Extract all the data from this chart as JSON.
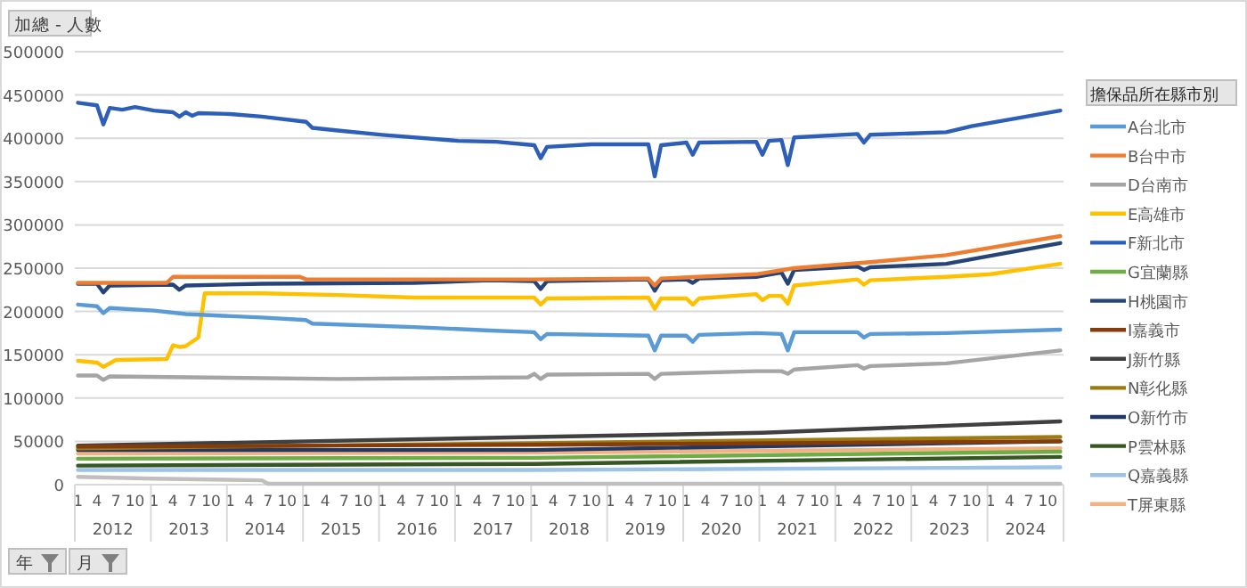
{
  "chart_data": {
    "type": "line",
    "ylabel": "加總 - 人數",
    "legend_title": "擔保品所在縣市別",
    "legend": "right",
    "grid": "y",
    "line_style": "solid",
    "xlim": [
      "2011-12-16",
      "2024-12-16"
    ],
    "ylim": [
      0,
      500000
    ],
    "yticks": [
      0,
      50000,
      100000,
      150000,
      200000,
      250000,
      300000,
      350000,
      400000,
      450000,
      500000
    ],
    "xticks": [
      {
        "value": "2012-01",
        "label": "1"
      },
      {
        "value": "2012-04",
        "label": "4"
      },
      {
        "value": "2012-07",
        "label": "7"
      },
      {
        "value": "2012-10",
        "label": "10"
      },
      {
        "value": "2013-01",
        "label": "1"
      },
      {
        "value": "2013-04",
        "label": "4"
      },
      {
        "value": "2013-07",
        "label": "7"
      },
      {
        "value": "2013-10",
        "label": "10"
      },
      {
        "value": "2014-01",
        "label": "1"
      },
      {
        "value": "2014-04",
        "label": "4"
      },
      {
        "value": "2014-07",
        "label": "7"
      },
      {
        "value": "2014-10",
        "label": "10"
      },
      {
        "value": "2015-01",
        "label": "1"
      },
      {
        "value": "2015-04",
        "label": "4"
      },
      {
        "value": "2015-07",
        "label": "7"
      },
      {
        "value": "2015-10",
        "label": "10"
      },
      {
        "value": "2016-01",
        "label": "1"
      },
      {
        "value": "2016-04",
        "label": "4"
      },
      {
        "value": "2016-07",
        "label": "7"
      },
      {
        "value": "2016-10",
        "label": "10"
      },
      {
        "value": "2017-01",
        "label": "1"
      },
      {
        "value": "2017-04",
        "label": "4"
      },
      {
        "value": "2017-07",
        "label": "7"
      },
      {
        "value": "2017-10",
        "label": "10"
      },
      {
        "value": "2018-01",
        "label": "1"
      },
      {
        "value": "2018-04",
        "label": "4"
      },
      {
        "value": "2018-07",
        "label": "7"
      },
      {
        "value": "2018-10",
        "label": "10"
      },
      {
        "value": "2019-01",
        "label": "1"
      },
      {
        "value": "2019-04",
        "label": "4"
      },
      {
        "value": "2019-07",
        "label": "7"
      },
      {
        "value": "2019-10",
        "label": "10"
      },
      {
        "value": "2020-01",
        "label": "1"
      },
      {
        "value": "2020-04",
        "label": "4"
      },
      {
        "value": "2020-07",
        "label": "7"
      },
      {
        "value": "2020-10",
        "label": "10"
      },
      {
        "value": "2021-01",
        "label": "1"
      },
      {
        "value": "2021-04",
        "label": "4"
      },
      {
        "value": "2021-07",
        "label": "7"
      },
      {
        "value": "2021-10",
        "label": "10"
      },
      {
        "value": "2022-01",
        "label": "1"
      },
      {
        "value": "2022-04",
        "label": "4"
      },
      {
        "value": "2022-07",
        "label": "7"
      },
      {
        "value": "2022-10",
        "label": "10"
      },
      {
        "value": "2023-01",
        "label": "1"
      },
      {
        "value": "2023-04",
        "label": "4"
      },
      {
        "value": "2023-07",
        "label": "7"
      },
      {
        "value": "2023-10",
        "label": "10"
      },
      {
        "value": "2024-01",
        "label": "1"
      },
      {
        "value": "2024-04",
        "label": "4"
      },
      {
        "value": "2024-07",
        "label": "7"
      },
      {
        "value": "2024-10",
        "label": "10"
      }
    ],
    "annotations": [
      "2012",
      "2013",
      "2014",
      "2015",
      "2016",
      "2017",
      "2018",
      "2019",
      "2020",
      "2021",
      "2022",
      "2023",
      "2024",
      "年",
      "月"
    ],
    "series": [
      {
        "name": "A台北市",
        "color": "#5b9bd5",
        "x": [
          "2012-01",
          "2012-04",
          "2012-05",
          "2012-06",
          "2013-01",
          "2013-06",
          "2014-06",
          "2015-01",
          "2015-02",
          "2016-06",
          "2017-06",
          "2018-01",
          "2018-02",
          "2018-03",
          "2019-07",
          "2019-08",
          "2019-09",
          "2020-01",
          "2020-02",
          "2020-03",
          "2020-12",
          "2021-04",
          "2021-05",
          "2021-06",
          "2022-04",
          "2022-05",
          "2022-06",
          "2023-06",
          "2024-12"
        ],
        "values": [
          208000,
          206000,
          198000,
          204000,
          201000,
          197000,
          193000,
          190000,
          186000,
          182000,
          178000,
          176000,
          168000,
          174000,
          172000,
          155000,
          172000,
          172000,
          165000,
          173000,
          175000,
          174000,
          155000,
          176000,
          176000,
          170000,
          174000,
          175000,
          179000
        ]
      },
      {
        "name": "B台中市",
        "color": "#ed7d31",
        "x": [
          "2012-01",
          "2013-03",
          "2013-04",
          "2014-12",
          "2015-01",
          "2018-01",
          "2019-07",
          "2019-08",
          "2019-09",
          "2020-12",
          "2021-06",
          "2022-06",
          "2023-06",
          "2024-12"
        ],
        "values": [
          233000,
          233000,
          240000,
          240000,
          237000,
          237000,
          238000,
          230000,
          238000,
          243000,
          250000,
          257000,
          265000,
          287000
        ]
      },
      {
        "name": "D台南市",
        "color": "#a5a5a5",
        "x": [
          "2012-01",
          "2012-04",
          "2012-05",
          "2012-06",
          "2015-06",
          "2017-12",
          "2018-01",
          "2018-02",
          "2018-03",
          "2019-07",
          "2019-08",
          "2019-09",
          "2020-12",
          "2021-04",
          "2021-05",
          "2021-06",
          "2022-04",
          "2022-05",
          "2022-06",
          "2023-06",
          "2024-12"
        ],
        "values": [
          126000,
          126000,
          121000,
          125000,
          122000,
          124000,
          128000,
          122000,
          127000,
          128000,
          122000,
          128000,
          131000,
          131000,
          128000,
          133000,
          138000,
          134000,
          137000,
          140000,
          155000
        ]
      },
      {
        "name": "E高雄市",
        "color": "#ffc000",
        "x": [
          "2012-01",
          "2012-04",
          "2012-05",
          "2012-07",
          "2013-03",
          "2013-04",
          "2013-05",
          "2013-06",
          "2013-08",
          "2013-09",
          "2014-06",
          "2015-06",
          "2016-06",
          "2017-12",
          "2018-01",
          "2018-02",
          "2018-03",
          "2019-07",
          "2019-08",
          "2019-09",
          "2020-01",
          "2020-02",
          "2020-03",
          "2020-12",
          "2021-01",
          "2021-02",
          "2021-04",
          "2021-05",
          "2021-06",
          "2022-04",
          "2022-05",
          "2022-06",
          "2023-06",
          "2024-01",
          "2024-12"
        ],
        "values": [
          143000,
          141000,
          136000,
          144000,
          145000,
          161000,
          159000,
          160000,
          170000,
          221000,
          221000,
          219000,
          216000,
          216000,
          216000,
          208000,
          215000,
          216000,
          203000,
          215000,
          215000,
          208000,
          215000,
          220000,
          213000,
          218000,
          218000,
          209000,
          230000,
          237000,
          231000,
          236000,
          240000,
          243000,
          255000
        ]
      },
      {
        "name": "F新北市",
        "color": "#2e5fb8",
        "x": [
          "2012-01",
          "2012-04",
          "2012-05",
          "2012-06",
          "2012-08",
          "2012-10",
          "2013-01",
          "2013-04",
          "2013-05",
          "2013-06",
          "2013-07",
          "2013-08",
          "2014-01",
          "2014-06",
          "2015-01",
          "2015-02",
          "2015-06",
          "2016-01",
          "2017-01",
          "2017-07",
          "2018-01",
          "2018-02",
          "2018-03",
          "2018-10",
          "2019-07",
          "2019-08",
          "2019-09",
          "2020-01",
          "2020-02",
          "2020-03",
          "2020-12",
          "2021-01",
          "2021-02",
          "2021-04",
          "2021-05",
          "2021-06",
          "2022-04",
          "2022-05",
          "2022-06",
          "2023-06",
          "2023-10",
          "2024-12"
        ],
        "values": [
          441000,
          438000,
          416000,
          435000,
          433000,
          436000,
          432000,
          430000,
          425000,
          430000,
          426000,
          429000,
          428000,
          425000,
          419000,
          412000,
          409000,
          404000,
          397000,
          396000,
          392000,
          377000,
          390000,
          393000,
          393000,
          356000,
          392000,
          395000,
          381000,
          395000,
          396000,
          381000,
          397000,
          398000,
          369000,
          401000,
          405000,
          395000,
          404000,
          407000,
          414000,
          432000
        ]
      },
      {
        "name": "G宜蘭縣",
        "color": "#70ad47",
        "x": [
          "2012-01",
          "2018-01",
          "2024-12"
        ],
        "values": [
          30000,
          31000,
          38000
        ]
      },
      {
        "name": "H桃園市",
        "color": "#264478",
        "x": [
          "2012-01",
          "2012-04",
          "2012-05",
          "2012-06",
          "2013-04",
          "2013-05",
          "2013-06",
          "2014-06",
          "2016-06",
          "2017-06",
          "2018-01",
          "2018-02",
          "2018-03",
          "2019-07",
          "2019-08",
          "2019-09",
          "2020-01",
          "2020-02",
          "2020-03",
          "2020-12",
          "2021-04",
          "2021-05",
          "2021-06",
          "2022-04",
          "2022-05",
          "2022-06",
          "2023-06",
          "2024-12"
        ],
        "values": [
          232000,
          232000,
          222000,
          230000,
          231000,
          225000,
          230000,
          232000,
          233000,
          236000,
          235000,
          226000,
          235000,
          237000,
          224000,
          236000,
          237000,
          233000,
          238000,
          240000,
          245000,
          232000,
          248000,
          252000,
          248000,
          251000,
          255000,
          279000
        ]
      },
      {
        "name": "I嘉義市",
        "color": "#843c0c",
        "x": [
          "2012-01",
          "2018-01",
          "2024-12"
        ],
        "values": [
          44000,
          46000,
          50000
        ]
      },
      {
        "name": "J新竹縣",
        "color": "#404040",
        "x": [
          "2012-01",
          "2018-01",
          "2021-01",
          "2024-12"
        ],
        "values": [
          45000,
          55000,
          60000,
          73000
        ]
      },
      {
        "name": "N彰化縣",
        "color": "#9e7b12",
        "x": [
          "2012-01",
          "2018-01",
          "2024-12"
        ],
        "values": [
          42000,
          48000,
          55000
        ]
      },
      {
        "name": "O新竹市",
        "color": "#1f3864",
        "x": [
          "2012-01",
          "2018-01",
          "2024-12"
        ],
        "values": [
          40000,
          40000,
          50000
        ]
      },
      {
        "name": "P雲林縣",
        "color": "#375623",
        "x": [
          "2012-01",
          "2018-01",
          "2024-12"
        ],
        "values": [
          22000,
          24000,
          32000
        ]
      },
      {
        "name": "Q嘉義縣",
        "color": "#9dc3e6",
        "x": [
          "2012-01",
          "2018-01",
          "2024-12"
        ],
        "values": [
          17000,
          17000,
          20000
        ]
      },
      {
        "name": "T屏東縣",
        "color": "#f4b183",
        "x": [
          "2012-01",
          "2018-01",
          "2024-12"
        ],
        "values": [
          36000,
          37000,
          42000
        ]
      },
      {
        "color": "#bfbfbf",
        "x": [
          "2012-01",
          "2013-01",
          "2014-06",
          "2014-07",
          "2024-12"
        ],
        "values": [
          9000,
          7000,
          5000,
          1000,
          1000
        ]
      }
    ]
  }
}
